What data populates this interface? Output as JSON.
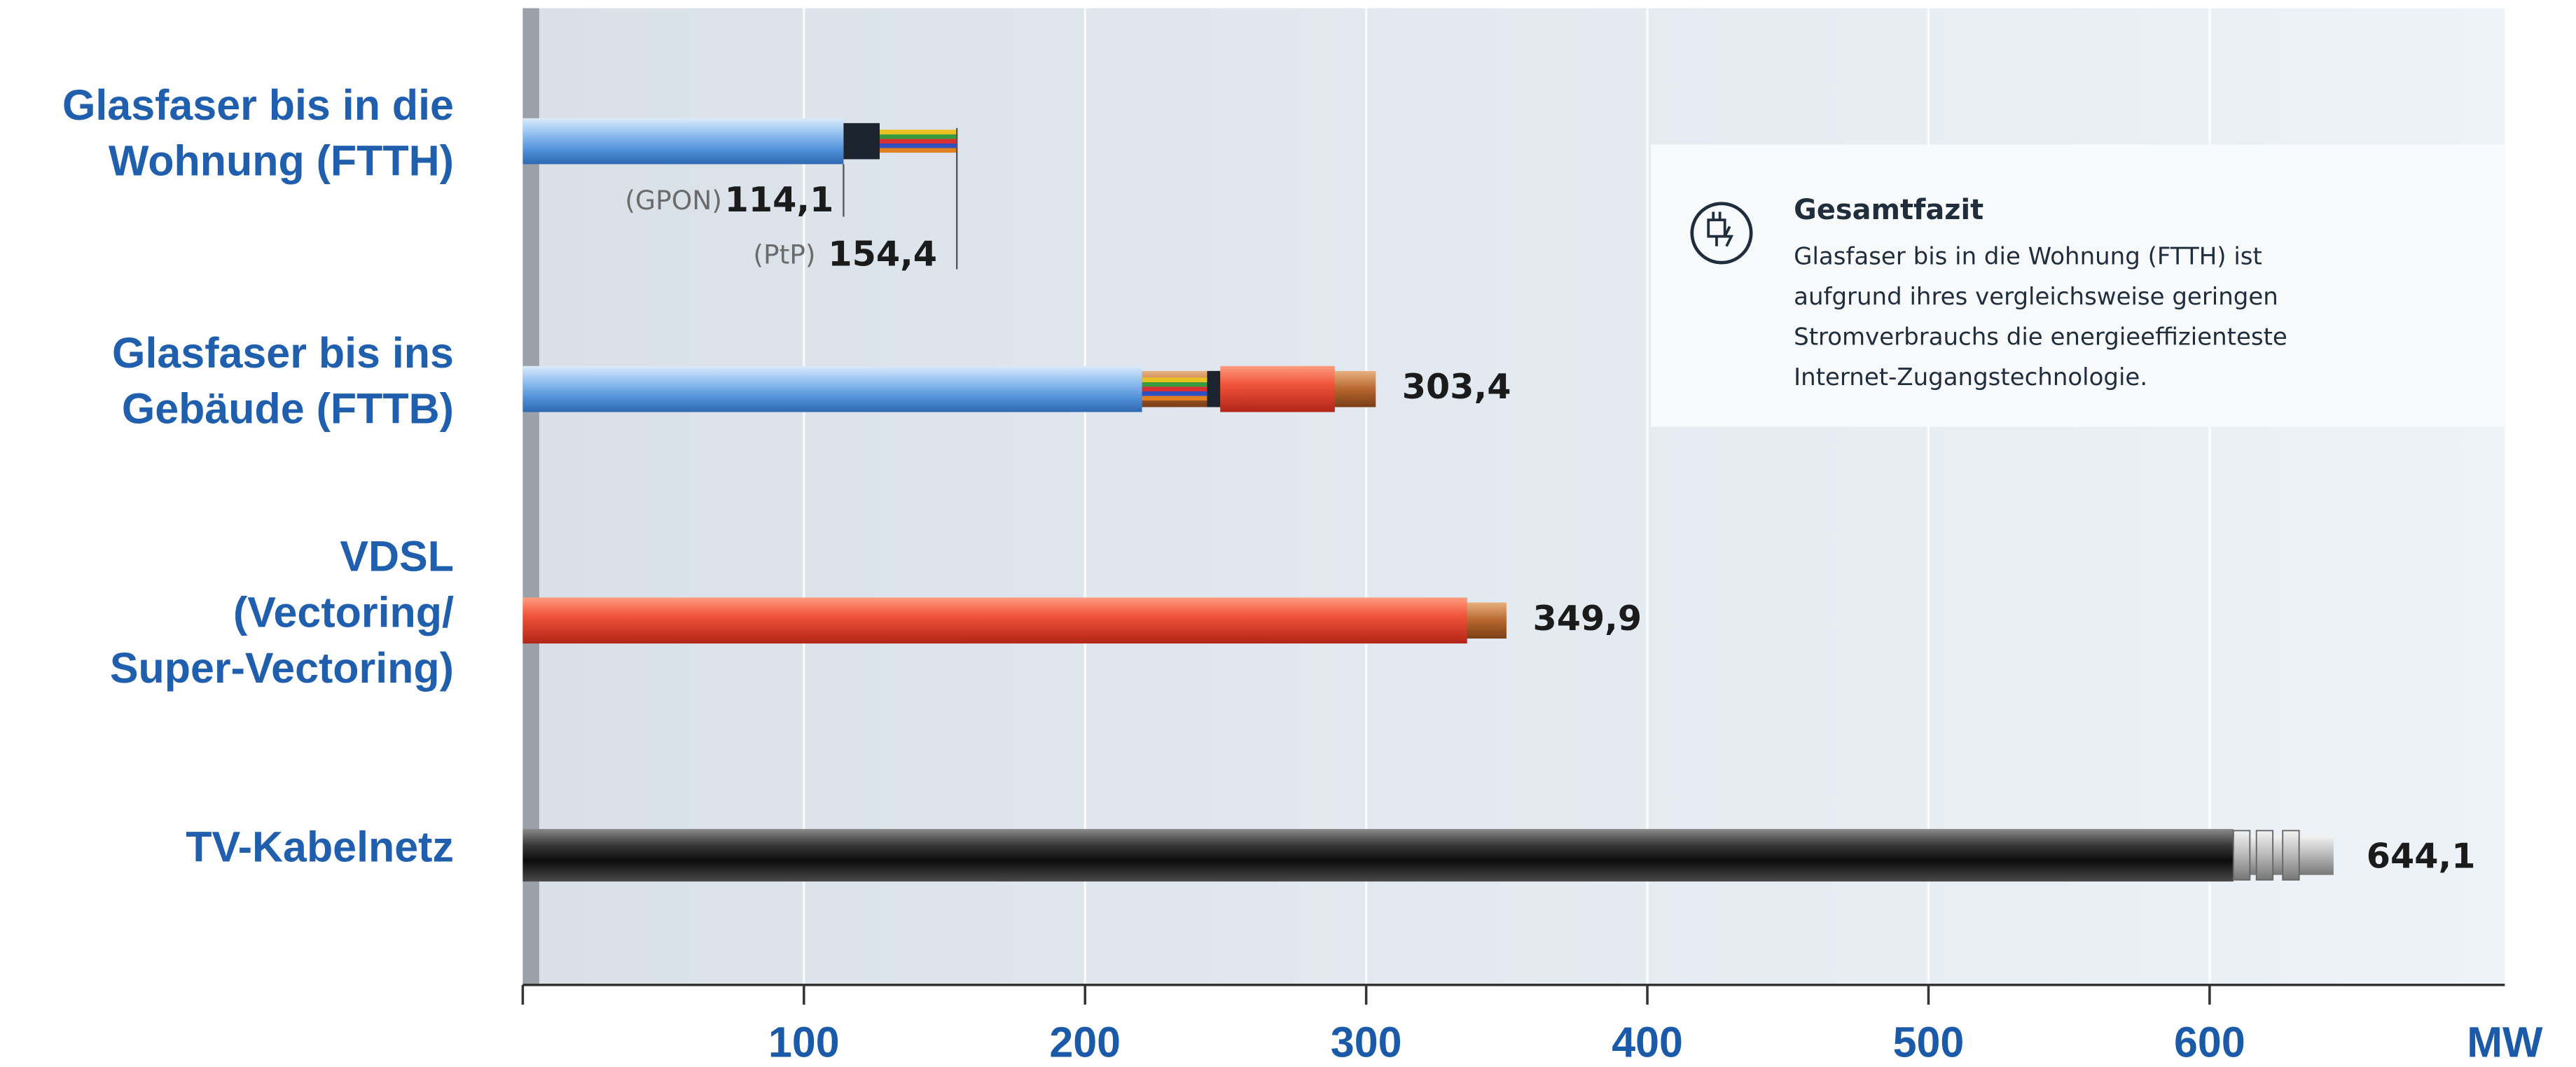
{
  "chart_data": {
    "type": "bar",
    "orientation": "horizontal",
    "xlim": [
      0,
      705
    ],
    "xticks": [
      100,
      200,
      300,
      400,
      500,
      600
    ],
    "xlabel": "MW",
    "grid": true,
    "bars": [
      {
        "category": [
          "Glasfaser bis in die",
          "Wohnung (FTTH)"
        ],
        "style": "fiber",
        "markers": [
          {
            "name": "(GPON)",
            "value": 114.1,
            "value_label": "114,1"
          },
          {
            "name": "(PtP)",
            "value": 154.4,
            "value_label": "154,4"
          }
        ]
      },
      {
        "category": [
          "Glasfaser bis ins",
          "Gebäude (FTTB)"
        ],
        "style": "fiber-copper",
        "value": 303.4,
        "value_label": "303,4"
      },
      {
        "category": [
          "VDSL",
          "(Vectoring/",
          "Super-Vectoring)"
        ],
        "style": "copper",
        "value": 349.9,
        "value_label": "349,9"
      },
      {
        "category": [
          "TV-Kabelnetz"
        ],
        "style": "coax",
        "value": 644.1,
        "value_label": "644,1"
      }
    ],
    "info_box": {
      "title": "Gesamtfazit",
      "lines": [
        "Glasfaser bis in die Wohnung (FTTH) ist",
        "aufgrund ihres vergleichsweise geringen",
        "Stromverbrauchs die energieeffizienteste",
        "Internet-Zugangstechnologie."
      ]
    }
  }
}
